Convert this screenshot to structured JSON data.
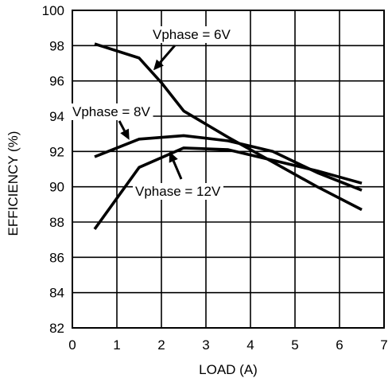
{
  "chart_data": {
    "type": "line",
    "xlabel": "LOAD (A)",
    "ylabel": "EFFICIENCY (%)",
    "xlim": [
      0,
      7
    ],
    "ylim": [
      82,
      100
    ],
    "xticks": [
      0,
      1,
      2,
      3,
      4,
      5,
      6,
      7
    ],
    "yticks": [
      82,
      84,
      86,
      88,
      90,
      92,
      94,
      96,
      98,
      100
    ],
    "grid": true,
    "series": [
      {
        "name": "Vphase = 6V",
        "x": [
          0.5,
          1.5,
          2,
          2.5,
          3.5,
          4.5,
          5.5,
          6.5
        ],
        "y": [
          98.1,
          97.3,
          95.9,
          94.3,
          92.8,
          91.4,
          90.0,
          88.7
        ]
      },
      {
        "name": "Vphase = 8V",
        "x": [
          0.5,
          1.5,
          2.5,
          3.5,
          4.5,
          5.5,
          6.5
        ],
        "y": [
          91.7,
          92.7,
          92.9,
          92.6,
          92.0,
          90.8,
          89.8
        ]
      },
      {
        "name": "Vphase = 12V",
        "x": [
          0.5,
          1.5,
          2.5,
          3.5,
          4.5,
          5.5,
          6.5
        ],
        "y": [
          87.6,
          91.1,
          92.2,
          92.1,
          91.5,
          90.9,
          90.2
        ]
      }
    ],
    "annotations": [
      {
        "series": 0,
        "text": "Vphase = 6V"
      },
      {
        "series": 1,
        "text": "Vphase = 8V"
      },
      {
        "series": 2,
        "text": "Vphase = 12V"
      }
    ]
  }
}
